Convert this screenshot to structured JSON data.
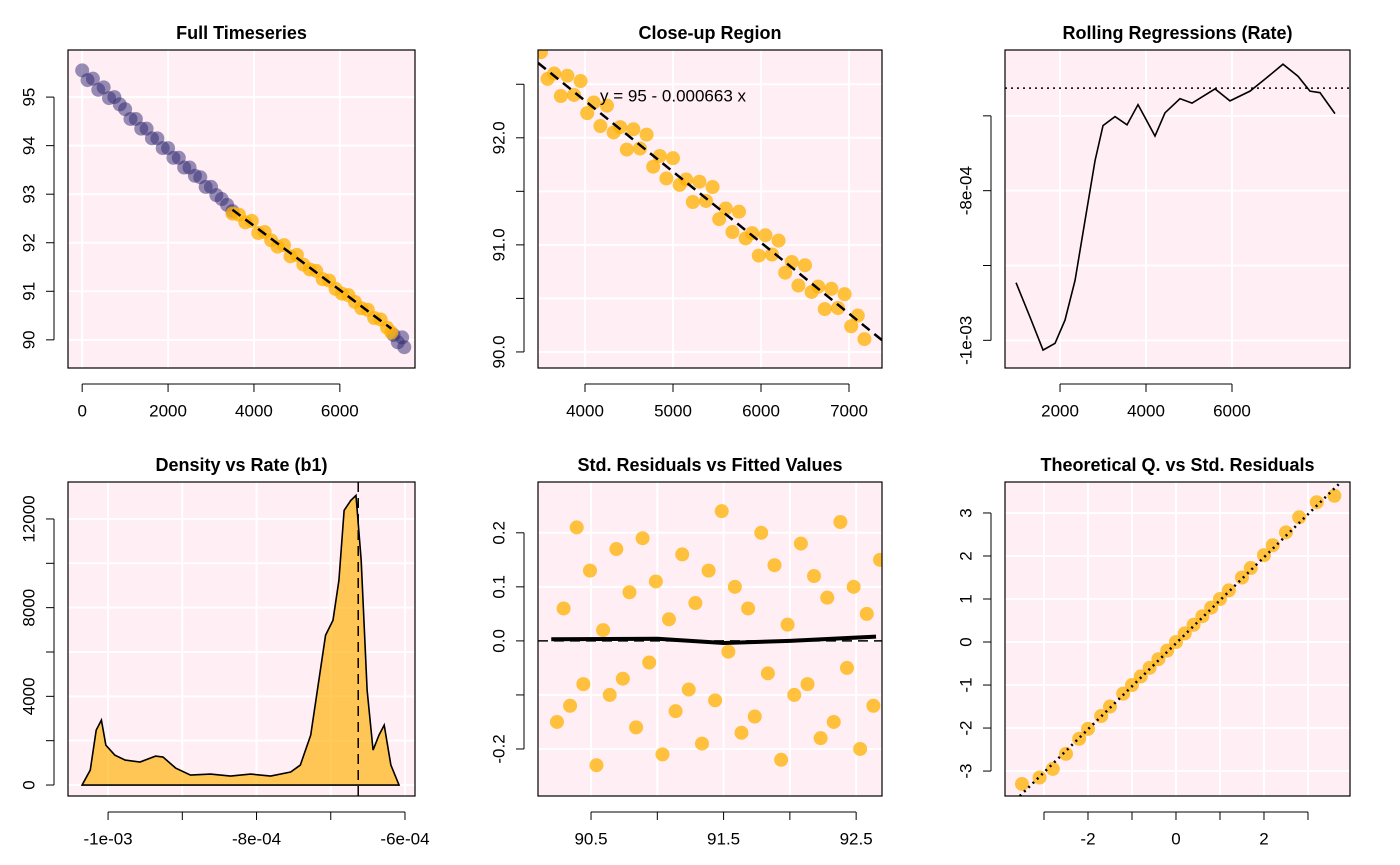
{
  "chart_data": [
    {
      "type": "scatter",
      "title": "Full Timeseries",
      "xlim": [
        -330,
        7750
      ],
      "ylim": [
        89.42,
        95.97
      ],
      "xticks": [
        0,
        2000,
        4000,
        6000
      ],
      "yticks": [
        90,
        91,
        92,
        93,
        94,
        95
      ],
      "grid": true,
      "series": [
        {
          "kind": "points",
          "color": "#2d2670",
          "x": [
            0,
            125,
            250,
            375,
            500,
            625,
            750,
            875,
            1000,
            1125,
            1250,
            1375,
            1500,
            1625,
            1750,
            1875,
            2000,
            2125,
            2250,
            2375,
            2500,
            2625,
            2750,
            2875,
            3000,
            3125,
            3250,
            3375,
            3500,
            7250,
            7350,
            7450,
            7500
          ],
          "values": [
            95.55,
            95.35,
            95.38,
            95.15,
            95.2,
            94.98,
            95.0,
            94.85,
            94.75,
            94.55,
            94.55,
            94.35,
            94.35,
            94.15,
            94.15,
            93.95,
            93.95,
            93.75,
            93.75,
            93.55,
            93.55,
            93.38,
            93.35,
            93.15,
            93.15,
            92.98,
            92.9,
            92.78,
            92.65,
            90.1,
            89.95,
            90.05,
            89.85
          ]
        },
        {
          "kind": "points",
          "color": "#ffb000",
          "x": [
            3500,
            3650,
            3800,
            3950,
            4100,
            4250,
            4400,
            4550,
            4700,
            4850,
            5000,
            5150,
            5300,
            5450,
            5600,
            5750,
            5900,
            6050,
            6200,
            6350,
            6500,
            6650,
            6800,
            6950,
            7100,
            7200
          ],
          "values": [
            92.6,
            92.58,
            92.42,
            92.45,
            92.2,
            92.22,
            92.05,
            91.92,
            91.95,
            91.72,
            91.75,
            91.55,
            91.45,
            91.42,
            91.25,
            91.22,
            91.05,
            90.95,
            90.92,
            90.78,
            90.65,
            90.62,
            90.45,
            90.42,
            90.25,
            90.15
          ]
        },
        {
          "kind": "line",
          "style": "dashed",
          "color": "#000000",
          "x": [
            3500,
            7200
          ],
          "values": [
            92.68,
            90.23
          ]
        }
      ]
    },
    {
      "type": "scatter",
      "title": "Close-up Region",
      "xlim": [
        3466,
        7375
      ],
      "ylim": [
        89.85,
        92.82
      ],
      "xticks": [
        4000,
        5000,
        6000,
        7000
      ],
      "yticks": [
        {
          "value": 90,
          "label": "90.0"
        },
        {
          "value": 90.5,
          "label": null
        },
        {
          "value": 91,
          "label": "91.0"
        },
        {
          "value": 91.5,
          "label": null
        },
        {
          "value": 92,
          "label": "92.0"
        },
        {
          "value": 92.5,
          "label": null
        }
      ],
      "grid": true,
      "annotation": "y = 95 - 0.000663 x",
      "series": [
        {
          "kind": "points",
          "color": "#ffb000",
          "x": [
            3500,
            3575,
            3650,
            3725,
            3800,
            3875,
            3950,
            4025,
            4100,
            4175,
            4250,
            4325,
            4400,
            4475,
            4550,
            4625,
            4700,
            4775,
            4850,
            4925,
            5000,
            5075,
            5150,
            5225,
            5300,
            5375,
            5450,
            5525,
            5600,
            5675,
            5750,
            5825,
            5900,
            5975,
            6050,
            6125,
            6200,
            6275,
            6350,
            6425,
            6500,
            6575,
            6650,
            6725,
            6800,
            6875,
            6950,
            7025,
            7100,
            7175
          ],
          "values": [
            92.8,
            92.55,
            92.6,
            92.39,
            92.58,
            92.4,
            92.53,
            92.23,
            92.33,
            92.11,
            92.3,
            92.05,
            92.1,
            91.89,
            92.08,
            91.9,
            92.03,
            91.73,
            91.83,
            91.62,
            91.81,
            91.56,
            91.61,
            91.4,
            91.59,
            91.41,
            91.54,
            91.24,
            91.34,
            91.12,
            91.31,
            91.06,
            91.11,
            90.9,
            91.09,
            90.91,
            91.04,
            90.74,
            90.84,
            90.62,
            90.81,
            90.56,
            90.61,
            90.4,
            90.59,
            90.41,
            90.54,
            90.24,
            90.34,
            90.12
          ]
        },
        {
          "kind": "line",
          "style": "dashed",
          "color": "#000000",
          "x": [
            3466,
            7375
          ],
          "values": [
            92.7,
            90.11
          ]
        }
      ]
    },
    {
      "type": "line",
      "title": "Rolling Regressions (Rate)",
      "xlim": [
        720,
        8745
      ],
      "ylim": [
        -0.001037,
        -0.000612
      ],
      "xticks": [
        2000,
        4000,
        6000
      ],
      "yticks": [
        {
          "value": -0.001,
          "label": "-1e-03"
        },
        {
          "value": -0.0009,
          "label": null
        },
        {
          "value": -0.0008,
          "label": "-8e-04"
        },
        {
          "value": -0.0007,
          "label": null
        }
      ],
      "grid": true,
      "hline": -0.000663,
      "hline_style": "dotted",
      "series": [
        {
          "kind": "line",
          "style": "solid",
          "color": "#000000",
          "x": [
            977,
            1302,
            1605,
            1884,
            2116,
            2349,
            2581,
            2814,
            3000,
            3279,
            3558,
            3814,
            4209,
            4442,
            4791,
            5070,
            5605,
            5953,
            6419,
            6767,
            7186,
            7535,
            7814,
            8047,
            8395
          ],
          "values": [
            -0.000923,
            -0.000969,
            -0.001013,
            -0.001004,
            -0.000973,
            -0.00092,
            -0.00084,
            -0.00076,
            -0.000713,
            -0.000701,
            -0.000712,
            -0.000685,
            -0.000727,
            -0.000696,
            -0.000677,
            -0.000683,
            -0.000664,
            -0.00068,
            -0.000667,
            -0.000651,
            -0.000631,
            -0.000647,
            -0.000667,
            -0.000669,
            -0.000697
          ]
        }
      ]
    },
    {
      "type": "area",
      "title": "Density vs Rate (b1)",
      "xlim": [
        -0.001054,
        -0.0005865
      ],
      "ylim": [
        -495,
        13667
      ],
      "xticks": [
        {
          "value": -0.001,
          "label": "-1e-03"
        },
        {
          "value": -0.0009,
          "label": null
        },
        {
          "value": -0.0008,
          "label": "-8e-04"
        },
        {
          "value": -0.0007,
          "label": null
        },
        {
          "value": -0.0006,
          "label": "-6e-04"
        }
      ],
      "yticks": [
        0,
        {
          "value": 2000,
          "label": null
        },
        4000,
        {
          "value": 6000,
          "label": null
        },
        8000,
        {
          "value": 10000,
          "label": null
        },
        12000
      ],
      "grid": true,
      "vline": -0.000663,
      "vline_style": "dashed",
      "series": [
        {
          "kind": "area",
          "color": "#ffb000",
          "x": [
            -0.001035,
            -0.001024,
            -0.001016,
            -0.001009,
            -0.001003,
            -0.000991,
            -0.000977,
            -0.000957,
            -0.000936,
            -0.000926,
            -0.000909,
            -0.000889,
            -0.000862,
            -0.000835,
            -0.000808,
            -0.000781,
            -0.000754,
            -0.000741,
            -0.000727,
            -0.000716,
            -0.000707,
            -0.000697,
            -0.000689,
            -0.000682,
            -0.000673,
            -0.000666,
            -0.000659,
            -0.000651,
            -0.000643,
            -0.000635,
            -0.000628,
            -0.000619,
            -0.000608
          ],
          "values": [
            0,
            675,
            2477,
            2928,
            1800,
            1351,
            1126,
            1036,
            1306,
            1261,
            766,
            450,
            495,
            405,
            495,
            405,
            585,
            900,
            2252,
            4730,
            6757,
            7432,
            9234,
            12387,
            12838,
            13063,
            10135,
            4279,
            1577,
            2252,
            2703,
            900,
            0
          ]
        }
      ]
    },
    {
      "type": "scatter",
      "title": "Std. Residuals vs Fitted Values",
      "xlim": [
        90.1,
        92.695
      ],
      "ylim": [
        -0.287,
        0.294
      ],
      "xticks": [
        90.5,
        {
          "value": 91,
          "label": null
        },
        91.5,
        {
          "value": 92,
          "label": null
        },
        92.5
      ],
      "yticks": [
        -0.2,
        {
          "value": -0.1,
          "label": null
        },
        {
          "value": 0,
          "label": "0.0"
        },
        0.1,
        0.2
      ],
      "grid": true,
      "hline": 0,
      "hline_style": "dashed",
      "series": [
        {
          "kind": "points",
          "color": "#ffb000",
          "x": [
            92.68,
            92.63,
            92.58,
            92.53,
            92.481,
            92.431,
            92.381,
            92.331,
            92.282,
            92.232,
            92.182,
            92.133,
            92.083,
            92.033,
            91.983,
            91.934,
            91.884,
            91.834,
            91.784,
            91.735,
            91.685,
            91.635,
            91.585,
            91.536,
            91.486,
            91.436,
            91.387,
            91.337,
            91.287,
            91.237,
            91.188,
            91.138,
            91.088,
            91.039,
            90.989,
            90.939,
            90.889,
            90.84,
            90.79,
            90.74,
            90.691,
            90.641,
            90.591,
            90.541,
            90.492,
            90.442,
            90.392,
            90.342,
            90.293,
            90.243
          ],
          "values": [
            0.15,
            -0.12,
            0.05,
            -0.2,
            0.1,
            -0.05,
            0.22,
            -0.15,
            0.08,
            -0.18,
            0.12,
            -0.08,
            0.18,
            -0.1,
            0.03,
            -0.22,
            0.14,
            -0.06,
            0.2,
            -0.14,
            0.06,
            -0.17,
            0.1,
            -0.02,
            0.24,
            -0.11,
            0.13,
            -0.19,
            0.07,
            -0.09,
            0.16,
            -0.13,
            0.04,
            -0.21,
            0.11,
            -0.04,
            0.19,
            -0.16,
            0.09,
            -0.07,
            0.17,
            -0.1,
            0.02,
            -0.23,
            0.13,
            -0.08,
            0.21,
            -0.12,
            0.06,
            -0.15
          ]
        },
        {
          "kind": "line",
          "style": "solid",
          "weight": "heavy",
          "color": "#000000",
          "x": [
            90.2,
            91.0,
            91.5,
            92.0,
            92.65
          ],
          "values": [
            0.003,
            0.004,
            -0.004,
            0.0,
            0.008
          ]
        }
      ]
    },
    {
      "type": "scatter",
      "title": "Theoretical Q. vs Std. Residuals",
      "xlim": [
        -3.886,
        3.955
      ],
      "ylim": [
        -3.58,
        3.72
      ],
      "xticks": [
        {
          "value": -3,
          "label": null
        },
        -2,
        {
          "value": -1,
          "label": null
        },
        0,
        {
          "value": 1,
          "label": null
        },
        2,
        {
          "value": 3,
          "label": null
        }
      ],
      "yticks": [
        -3,
        -2,
        -1,
        0,
        1,
        2,
        3
      ],
      "grid": true,
      "series": [
        {
          "kind": "points",
          "color": "#ffb000",
          "x": [
            -3.5,
            -3.1,
            -2.8,
            -2.5,
            -2.2,
            -2.0,
            -1.7,
            -1.5,
            -1.2,
            -1.0,
            -0.8,
            -0.6,
            -0.4,
            -0.2,
            0,
            0.2,
            0.4,
            0.6,
            0.8,
            1.0,
            1.2,
            1.5,
            1.7,
            2.0,
            2.2,
            2.5,
            2.8,
            3.2,
            3.6
          ],
          "values": [
            -3.3,
            -3.15,
            -2.95,
            -2.6,
            -2.25,
            -2.02,
            -1.72,
            -1.5,
            -1.2,
            -1.0,
            -0.8,
            -0.6,
            -0.4,
            -0.2,
            0.0,
            0.2,
            0.4,
            0.6,
            0.8,
            1.0,
            1.2,
            1.5,
            1.72,
            2.02,
            2.25,
            2.55,
            2.9,
            3.25,
            3.4
          ]
        },
        {
          "kind": "line",
          "style": "dotted",
          "color": "#000000",
          "x": [
            -3.55,
            3.75
          ],
          "values": [
            -3.58,
            3.72
          ]
        }
      ]
    }
  ]
}
